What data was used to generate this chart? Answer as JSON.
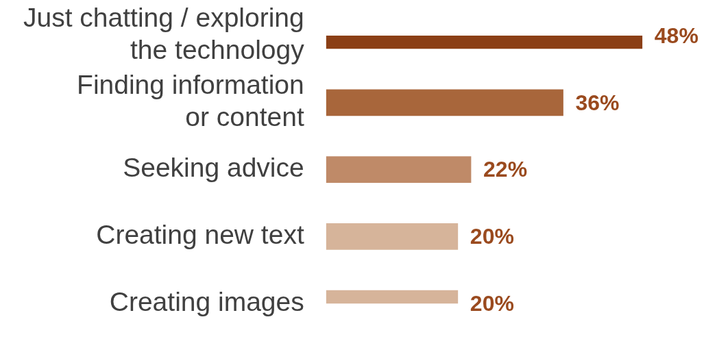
{
  "chart_data": {
    "type": "bar",
    "orientation": "horizontal",
    "categories": [
      "Just chatting / exploring\nthe technology",
      "Finding information\nor content",
      "Seeking advice",
      "Creating new text",
      "Creating images"
    ],
    "values": [
      48,
      36,
      22,
      20,
      20
    ],
    "colors": [
      "#8b3f16",
      "#a8663b",
      "#bf8a68",
      "#d6b49a",
      "#d6b49a"
    ],
    "value_labels": [
      "48%",
      "36%",
      "22%",
      "20%",
      "20%"
    ],
    "tick_labels": "y"
  }
}
